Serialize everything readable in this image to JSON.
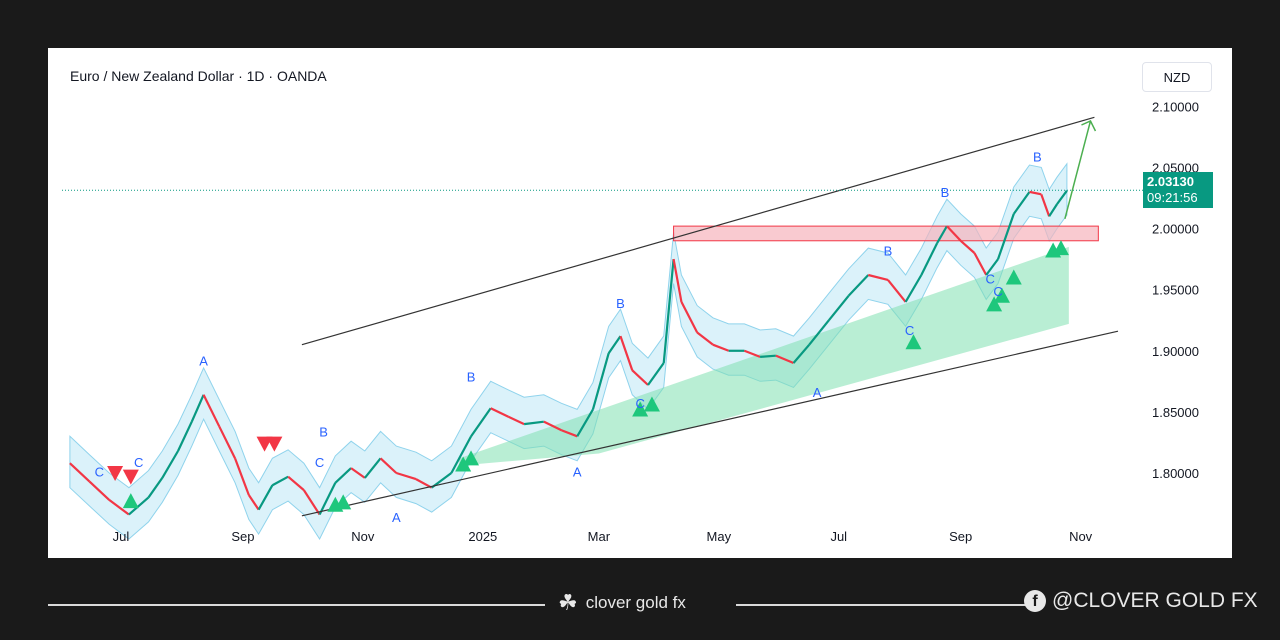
{
  "header": {
    "title": "Euro / New Zealand Dollar · 1D · OANDA",
    "currency": "NZD"
  },
  "price_tag": {
    "price": "2.03130",
    "countdown": "09:21:56"
  },
  "footer": {
    "brand": "clover gold fx",
    "social": "@CLOVER GOLD FX"
  },
  "colors": {
    "up": "#089981",
    "down": "#f23645",
    "cloud": "#bde8f5",
    "zone": "#f7b4bc",
    "label": "#2962ff"
  },
  "chart_data": {
    "type": "line",
    "title": "Euro / New Zealand Dollar · 1D · OANDA",
    "ylim": [
      1.755,
      2.115
    ],
    "y_ticks": [
      "2.10000",
      "2.05000",
      "2.00000",
      "1.95000",
      "1.90000",
      "1.85000",
      "1.80000"
    ],
    "x_ticks": [
      "Jul",
      "Sep",
      "Nov",
      "2025",
      "Mar",
      "May",
      "Jul",
      "Sep",
      "Nov"
    ],
    "series": [
      {
        "points": [
          [
            "2024-06-05",
            1.808
          ],
          [
            "2024-06-15",
            1.793
          ],
          [
            "2024-06-25",
            1.778
          ],
          [
            "2024-07-05",
            1.766
          ],
          [
            "2024-07-15",
            1.78
          ],
          [
            "2024-07-22",
            1.796
          ],
          [
            "2024-07-30",
            1.818
          ],
          [
            "2024-08-06",
            1.842
          ],
          [
            "2024-08-12",
            1.864
          ],
          [
            "2024-08-20",
            1.838
          ],
          [
            "2024-08-28",
            1.812
          ],
          [
            "2024-09-04",
            1.782
          ],
          [
            "2024-09-09",
            1.77
          ],
          [
            "2024-09-16",
            1.79
          ],
          [
            "2024-09-24",
            1.797
          ],
          [
            "2024-10-02",
            1.786
          ],
          [
            "2024-10-10",
            1.766
          ],
          [
            "2024-10-18",
            1.792
          ],
          [
            "2024-10-26",
            1.804
          ],
          [
            "2024-11-02",
            1.796
          ],
          [
            "2024-11-10",
            1.812
          ],
          [
            "2024-11-18",
            1.8
          ],
          [
            "2024-11-28",
            1.795
          ],
          [
            "2024-12-06",
            1.788
          ],
          [
            "2024-12-16",
            1.8
          ],
          [
            "2024-12-26",
            1.83
          ],
          [
            "2025-01-05",
            1.853
          ],
          [
            "2025-01-14",
            1.846
          ],
          [
            "2025-01-22",
            1.84
          ],
          [
            "2025-02-01",
            1.842
          ],
          [
            "2025-02-10",
            1.835
          ],
          [
            "2025-02-18",
            1.83
          ],
          [
            "2025-02-26",
            1.852
          ],
          [
            "2025-03-06",
            1.898
          ],
          [
            "2025-03-12",
            1.912
          ],
          [
            "2025-03-18",
            1.884
          ],
          [
            "2025-03-26",
            1.872
          ],
          [
            "2025-04-03",
            1.89
          ],
          [
            "2025-04-08",
            1.975
          ],
          [
            "2025-04-12",
            1.94
          ],
          [
            "2025-04-20",
            1.915
          ],
          [
            "2025-04-28",
            1.905
          ],
          [
            "2025-05-06",
            1.9
          ],
          [
            "2025-05-14",
            1.9
          ],
          [
            "2025-05-22",
            1.895
          ],
          [
            "2025-05-30",
            1.896
          ],
          [
            "2025-06-08",
            1.89
          ],
          [
            "2025-06-16",
            1.905
          ],
          [
            "2025-06-26",
            1.925
          ],
          [
            "2025-07-06",
            1.945
          ],
          [
            "2025-07-16",
            1.962
          ],
          [
            "2025-07-26",
            1.958
          ],
          [
            "2025-08-04",
            1.94
          ],
          [
            "2025-08-12",
            1.962
          ],
          [
            "2025-08-20",
            1.988
          ],
          [
            "2025-08-25",
            2.002
          ],
          [
            "2025-09-01",
            1.99
          ],
          [
            "2025-09-08",
            1.98
          ],
          [
            "2025-09-14",
            1.962
          ],
          [
            "2025-09-20",
            1.975
          ],
          [
            "2025-09-28",
            2.012
          ],
          [
            "2025-10-06",
            2.03
          ],
          [
            "2025-10-12",
            2.028
          ],
          [
            "2025-10-16",
            2.01
          ],
          [
            "2025-10-20",
            2.02
          ],
          [
            "2025-10-25",
            2.031
          ]
        ]
      }
    ],
    "channel": {
      "upper": [
        [
          "2024-10-01",
          1.905
        ],
        [
          "2025-11-08",
          2.091
        ]
      ],
      "lower": [
        [
          "2024-10-01",
          1.765
        ],
        [
          "2025-11-20",
          1.916
        ]
      ]
    },
    "supply_zone": {
      "x": [
        "2025-04-08",
        "2025-11-10"
      ],
      "y": [
        1.99,
        2.002
      ]
    },
    "projection": [
      [
        "2025-10-24",
        2.008
      ],
      [
        "2025-11-06",
        2.088
      ]
    ],
    "last_price": 2.0313,
    "wave_labels": [
      {
        "text": "C",
        "x": "2024-06-20",
        "y": 1.797
      },
      {
        "text": "C",
        "x": "2024-07-10",
        "y": 1.805
      },
      {
        "text": "A",
        "x": "2024-08-12",
        "y": 1.888
      },
      {
        "text": "B",
        "x": "2024-10-12",
        "y": 1.83
      },
      {
        "text": "C",
        "x": "2024-10-10",
        "y": 1.805
      },
      {
        "text": "A",
        "x": "2024-11-18",
        "y": 1.76
      },
      {
        "text": "B",
        "x": "2024-12-26",
        "y": 1.875
      },
      {
        "text": "A",
        "x": "2025-02-18",
        "y": 1.797
      },
      {
        "text": "B",
        "x": "2025-03-12",
        "y": 1.935
      },
      {
        "text": "C",
        "x": "2025-03-22",
        "y": 1.853
      },
      {
        "text": "A",
        "x": "2025-06-20",
        "y": 1.862
      },
      {
        "text": "B",
        "x": "2025-07-26",
        "y": 1.978
      },
      {
        "text": "C",
        "x": "2025-08-06",
        "y": 1.913
      },
      {
        "text": "B",
        "x": "2025-08-24",
        "y": 2.026
      },
      {
        "text": "C",
        "x": "2025-09-16",
        "y": 1.955
      },
      {
        "text": "C",
        "x": "2025-09-20",
        "y": 1.945
      },
      {
        "text": "B",
        "x": "2025-10-10",
        "y": 2.055
      }
    ],
    "up_signals": [
      [
        "2024-07-06",
        1.777
      ],
      [
        "2024-10-18",
        1.774
      ],
      [
        "2024-10-22",
        1.776
      ],
      [
        "2024-12-22",
        1.807
      ],
      [
        "2024-12-26",
        1.812
      ],
      [
        "2025-03-22",
        1.852
      ],
      [
        "2025-03-28",
        1.856
      ],
      [
        "2025-08-08",
        1.907
      ],
      [
        "2025-09-18",
        1.938
      ],
      [
        "2025-09-22",
        1.945
      ],
      [
        "2025-09-28",
        1.96
      ],
      [
        "2025-10-18",
        1.982
      ],
      [
        "2025-10-22",
        1.984
      ]
    ],
    "down_signals": [
      [
        "2024-06-28",
        1.8
      ],
      [
        "2024-07-06",
        1.797
      ],
      [
        "2024-09-12",
        1.824
      ],
      [
        "2024-09-17",
        1.824
      ]
    ]
  }
}
